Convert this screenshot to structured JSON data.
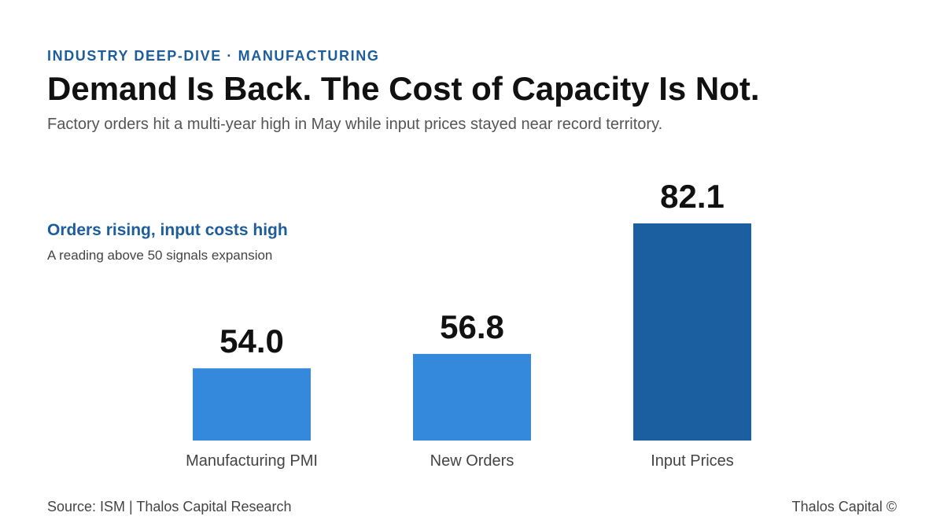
{
  "header": {
    "eyebrow": "INDUSTRY DEEP-DIVE · MANUFACTURING",
    "title": "Demand Is Back. The Cost of Capacity Is Not.",
    "subtitle": "Factory orders hit a multi-year high in May while input prices stayed near record territory."
  },
  "chart_data": {
    "type": "bar",
    "title": "Orders rising, input costs high",
    "subtitle": "A reading above 50 signals expansion",
    "categories": [
      "Manufacturing PMI",
      "New Orders",
      "Input Prices"
    ],
    "values": [
      54.0,
      56.8,
      82.1
    ],
    "value_labels": [
      "54.0",
      "56.8",
      "82.1"
    ],
    "xlabel": "",
    "ylabel": "",
    "ylim": [
      40,
      85
    ],
    "grid": false,
    "legend": "none",
    "colors": [
      "#3589dc",
      "#3589dc",
      "#1b5fa0"
    ]
  },
  "footer": {
    "source": "Source: ISM | Thalos Capital Research",
    "brand": "Thalos Capital ©"
  }
}
